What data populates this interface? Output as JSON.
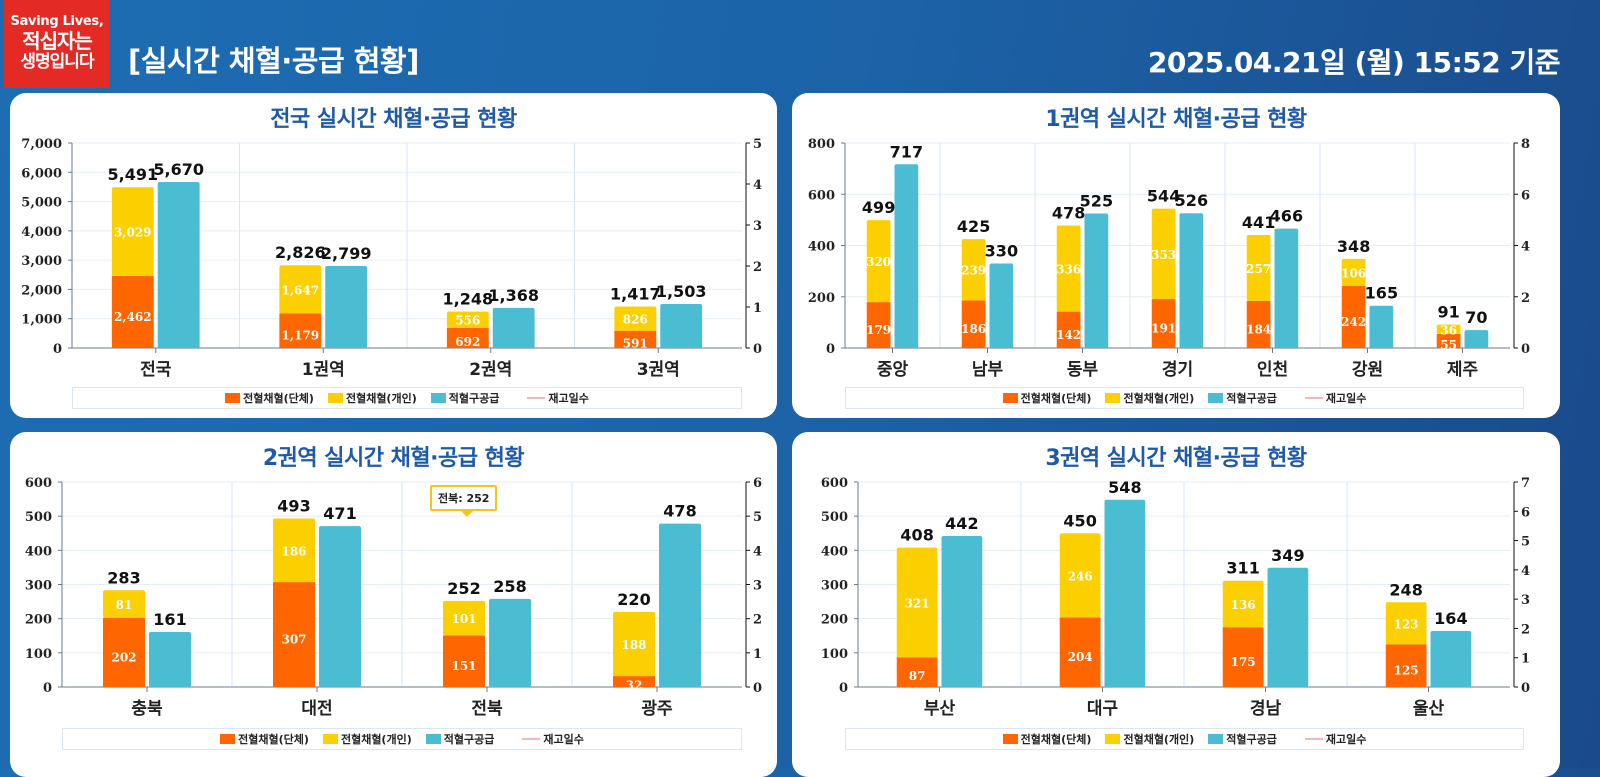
{
  "header": {
    "logo_line1": "Saving Lives,",
    "logo_line2": "적십자는",
    "logo_line3": "생명입니다",
    "title": "[실시간 채혈·공급 현황]",
    "timestamp": "2025.04.21일 (월) 15:52 기준"
  },
  "colors": {
    "group": "#ff6600",
    "individual": "#fcd000",
    "supply": "#4bbdd3",
    "stock_days": "#f2b8b8",
    "title": "#1e5aa8"
  },
  "legend": {
    "group": "전혈채혈(단체)",
    "individual": "전혈채혈(개인)",
    "supply": "적혈구공급",
    "stock_days": "재고일수"
  },
  "tooltip": {
    "text": "전북: 252"
  },
  "chart_data": [
    {
      "id": "national",
      "type": "bar",
      "title": "전국 실시간 채혈·공급 현황",
      "categories": [
        "전국",
        "1권역",
        "2권역",
        "3권역"
      ],
      "series": [
        {
          "name": "전혈채혈(단체)",
          "stack": "collection",
          "values": [
            2462,
            1179,
            692,
            591
          ]
        },
        {
          "name": "전혈채혈(개인)",
          "stack": "collection",
          "values": [
            3029,
            1647,
            556,
            826
          ]
        },
        {
          "name": "적혈구공급",
          "stack": "supply",
          "values": [
            5670,
            2799,
            1368,
            1503
          ]
        }
      ],
      "totals": [
        5491,
        2826,
        1248,
        1417
      ],
      "ylim": [
        0,
        7000
      ],
      "ystep": 1000,
      "y2lim": [
        0,
        5
      ],
      "y2step": 1,
      "legend": "bottom",
      "grid": true
    },
    {
      "id": "region1",
      "type": "bar",
      "title": "1권역 실시간 채혈·공급 현황",
      "categories": [
        "중앙",
        "남부",
        "동부",
        "경기",
        "인천",
        "강원",
        "제주"
      ],
      "series": [
        {
          "name": "전혈채혈(단체)",
          "stack": "collection",
          "values": [
            179,
            186,
            142,
            191,
            184,
            242,
            55
          ]
        },
        {
          "name": "전혈채혈(개인)",
          "stack": "collection",
          "values": [
            320,
            239,
            336,
            353,
            257,
            106,
            36
          ]
        },
        {
          "name": "적혈구공급",
          "stack": "supply",
          "values": [
            717,
            330,
            525,
            526,
            466,
            165,
            70
          ]
        }
      ],
      "totals": [
        499,
        425,
        478,
        544,
        441,
        348,
        91
      ],
      "ylim": [
        0,
        800
      ],
      "ystep": 200,
      "y2lim": [
        0,
        8
      ],
      "y2step": 2,
      "legend": "bottom",
      "grid": true
    },
    {
      "id": "region2",
      "type": "bar",
      "title": "2권역 실시간 채혈·공급 현황",
      "categories": [
        "충북",
        "대전",
        "전북",
        "광주"
      ],
      "series": [
        {
          "name": "전혈채혈(단체)",
          "stack": "collection",
          "values": [
            202,
            307,
            151,
            32
          ]
        },
        {
          "name": "전혈채혈(개인)",
          "stack": "collection",
          "values": [
            81,
            186,
            101,
            188
          ]
        },
        {
          "name": "적혈구공급",
          "stack": "supply",
          "values": [
            161,
            471,
            258,
            478
          ]
        }
      ],
      "totals": [
        283,
        493,
        252,
        220
      ],
      "ylim": [
        0,
        600
      ],
      "ystep": 100,
      "y2lim": [
        0,
        6
      ],
      "y2step": 1,
      "legend": "bottom",
      "grid": true
    },
    {
      "id": "region3",
      "type": "bar",
      "title": "3권역 실시간 채혈·공급 현황",
      "categories": [
        "부산",
        "대구",
        "경남",
        "울산"
      ],
      "series": [
        {
          "name": "전혈채혈(단체)",
          "stack": "collection",
          "values": [
            87,
            204,
            175,
            125
          ]
        },
        {
          "name": "전혈채혈(개인)",
          "stack": "collection",
          "values": [
            321,
            246,
            136,
            123
          ]
        },
        {
          "name": "적혈구공급",
          "stack": "supply",
          "values": [
            442,
            548,
            349,
            164
          ]
        }
      ],
      "totals": [
        408,
        450,
        311,
        248
      ],
      "ylim": [
        0,
        600
      ],
      "ystep": 100,
      "y2lim": [
        0,
        7
      ],
      "y2step": 1,
      "legend": "bottom",
      "grid": true
    }
  ]
}
